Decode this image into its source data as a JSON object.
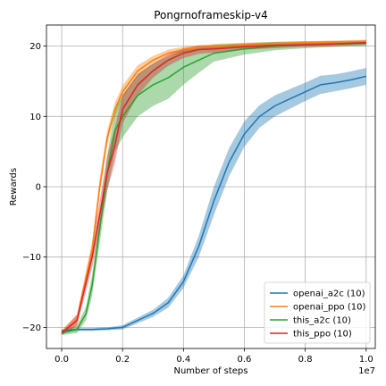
{
  "chart_data": {
    "type": "line",
    "title": "Pongrnoframeskip-v4",
    "xlabel": "Number of steps",
    "ylabel": "Rewards",
    "x_multiplier_label": "1e7",
    "xlim": [
      -0.05,
      1.03
    ],
    "ylim": [
      -23,
      23
    ],
    "xticks": [
      0.0,
      0.2,
      0.4,
      0.6,
      0.8,
      1.0
    ],
    "xtick_labels": [
      "0.0",
      "0.2",
      "0.4",
      "0.6",
      "0.8",
      "1.0"
    ],
    "yticks": [
      -20,
      -10,
      0,
      10,
      20
    ],
    "ytick_labels": [
      "−20",
      "−10",
      "0",
      "10",
      "20"
    ],
    "grid": true,
    "legend_position": "lower right",
    "series": [
      {
        "name": "openai_a2c (10)",
        "color": "#1f77b4",
        "x": [
          0.0,
          0.05,
          0.1,
          0.15,
          0.2,
          0.25,
          0.3,
          0.35,
          0.4,
          0.45,
          0.5,
          0.55,
          0.6,
          0.65,
          0.7,
          0.75,
          0.8,
          0.85,
          0.9,
          0.95,
          1.0
        ],
        "y": [
          -20.5,
          -20.3,
          -20.3,
          -20.2,
          -20.0,
          -19.0,
          -18.0,
          -16.5,
          -13.5,
          -8.5,
          -2.0,
          3.5,
          7.5,
          10.0,
          11.5,
          12.5,
          13.5,
          14.5,
          14.8,
          15.2,
          15.7
        ],
        "band": [
          0.2,
          0.2,
          0.2,
          0.2,
          0.3,
          0.4,
          0.5,
          0.7,
          0.9,
          1.5,
          2.0,
          2.0,
          1.8,
          1.6,
          1.5,
          1.4,
          1.3,
          1.3,
          1.2,
          1.2,
          1.2
        ]
      },
      {
        "name": "openai_ppo (10)",
        "color": "#ff7f0e",
        "x": [
          0.0,
          0.05,
          0.1,
          0.125,
          0.15,
          0.175,
          0.2,
          0.25,
          0.3,
          0.35,
          0.4,
          0.45,
          0.5,
          0.6,
          0.7,
          0.8,
          0.9,
          1.0
        ],
        "y": [
          -20.8,
          -19.0,
          -9.0,
          0.0,
          7.0,
          11.0,
          13.5,
          16.5,
          18.0,
          19.0,
          19.5,
          19.8,
          20.0,
          20.2,
          20.4,
          20.5,
          20.6,
          20.7
        ],
        "band": [
          0.3,
          0.8,
          1.2,
          1.2,
          1.1,
          1.0,
          0.9,
          0.8,
          0.6,
          0.5,
          0.4,
          0.3,
          0.3,
          0.3,
          0.2,
          0.2,
          0.2,
          0.2
        ]
      },
      {
        "name": "this_a2c (10)",
        "color": "#2ca02c",
        "x": [
          0.0,
          0.05,
          0.08,
          0.1,
          0.125,
          0.15,
          0.175,
          0.2,
          0.25,
          0.3,
          0.35,
          0.4,
          0.45,
          0.5,
          0.6,
          0.7,
          0.8,
          0.9,
          1.0
        ],
        "y": [
          -20.8,
          -20.3,
          -18.0,
          -14.0,
          -6.0,
          2.0,
          8.0,
          10.0,
          13.0,
          14.5,
          15.5,
          17.0,
          18.0,
          19.0,
          19.6,
          20.0,
          20.2,
          20.3,
          20.4
        ],
        "band": [
          0.3,
          0.5,
          1.0,
          1.5,
          2.0,
          2.5,
          3.0,
          3.0,
          3.0,
          3.0,
          3.0,
          2.5,
          1.8,
          1.2,
          0.8,
          0.6,
          0.5,
          0.4,
          0.4
        ]
      },
      {
        "name": "this_ppo (10)",
        "color": "#d62728",
        "x": [
          0.0,
          0.05,
          0.1,
          0.125,
          0.15,
          0.175,
          0.2,
          0.25,
          0.3,
          0.35,
          0.4,
          0.45,
          0.5,
          0.6,
          0.7,
          0.8,
          0.9,
          1.0
        ],
        "y": [
          -20.8,
          -19.0,
          -10.0,
          -4.0,
          2.0,
          6.0,
          11.0,
          14.5,
          16.5,
          18.0,
          19.0,
          19.5,
          19.6,
          19.9,
          20.1,
          20.2,
          20.3,
          20.5
        ],
        "band": [
          0.3,
          0.8,
          1.5,
          2.0,
          2.5,
          2.5,
          2.0,
          1.5,
          1.0,
          0.8,
          0.7,
          0.6,
          0.5,
          0.4,
          0.4,
          0.3,
          0.3,
          0.3
        ]
      }
    ]
  }
}
